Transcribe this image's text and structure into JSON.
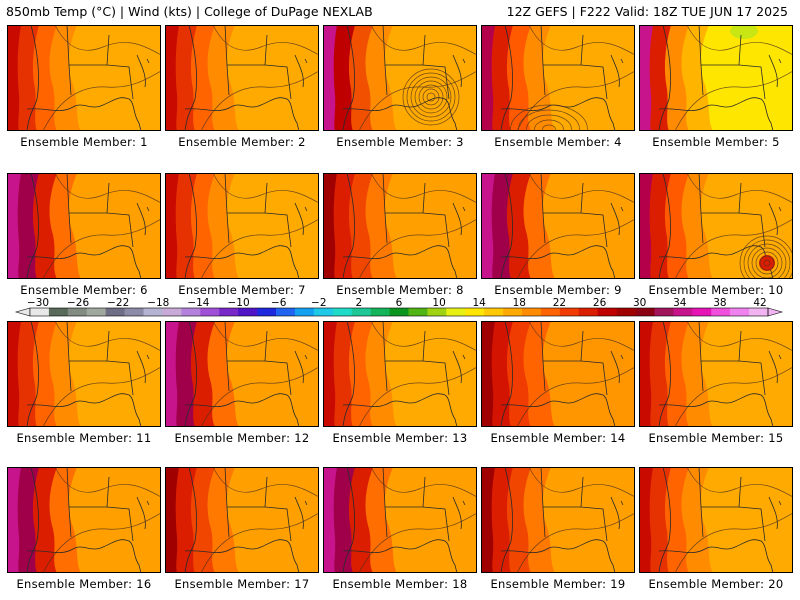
{
  "header": {
    "left": "850mb Temp (°C) | Wind (kts) | College of DuPage NEXLAB",
    "right": "12Z GEFS | F222 Valid: 18Z TUE JUN 17 2025"
  },
  "panels": [
    {
      "label": "Ensemble Member: 1",
      "variant": "warm"
    },
    {
      "label": "Ensemble Member: 2",
      "variant": "warm"
    },
    {
      "label": "Ensemble Member: 3",
      "variant": "magenta-low"
    },
    {
      "label": "Ensemble Member: 4",
      "variant": "red-low"
    },
    {
      "label": "Ensemble Member: 5",
      "variant": "hot-yellow"
    },
    {
      "label": "Ensemble Member: 6",
      "variant": "magenta"
    },
    {
      "label": "Ensemble Member: 7",
      "variant": "warm"
    },
    {
      "label": "Ensemble Member: 8",
      "variant": "warm-dark"
    },
    {
      "label": "Ensemble Member: 9",
      "variant": "magenta"
    },
    {
      "label": "Ensemble Member: 10",
      "variant": "red-low"
    },
    {
      "label": "Ensemble Member: 11",
      "variant": "warm"
    },
    {
      "label": "Ensemble Member: 12",
      "variant": "magenta"
    },
    {
      "label": "Ensemble Member: 13",
      "variant": "warm"
    },
    {
      "label": "Ensemble Member: 14",
      "variant": "red"
    },
    {
      "label": "Ensemble Member: 15",
      "variant": "warm"
    },
    {
      "label": "Ensemble Member: 16",
      "variant": "magenta"
    },
    {
      "label": "Ensemble Member: 17",
      "variant": "warm-dark"
    },
    {
      "label": "Ensemble Member: 18",
      "variant": "magenta"
    },
    {
      "label": "Ensemble Member: 19",
      "variant": "warm-dark"
    },
    {
      "label": "Ensemble Member: 20",
      "variant": "warm"
    }
  ],
  "colorbar": {
    "ticks": [
      "−30",
      "−26",
      "−22",
      "−18",
      "−14",
      "−10",
      "−6",
      "−2",
      "2",
      "6",
      "10",
      "14",
      "18",
      "22",
      "26",
      "30",
      "34",
      "38",
      "42"
    ],
    "colors": [
      "#e8e8e8",
      "#5a6a5a",
      "#828c82",
      "#a0a8a0",
      "#6e6e86",
      "#8c8ca8",
      "#b4b4d2",
      "#c8aad8",
      "#b482dc",
      "#a050d8",
      "#7828c8",
      "#5014c8",
      "#1e28dc",
      "#1e64f0",
      "#14a0f0",
      "#1ec8e6",
      "#1edcc8",
      "#1ec896",
      "#14b45a",
      "#0a961e",
      "#50b414",
      "#a0d214",
      "#e6f014",
      "#ffe600",
      "#ffc800",
      "#ffaa00",
      "#ff8c00",
      "#ff6400",
      "#f03c00",
      "#dc1e00",
      "#be0000",
      "#a00000",
      "#8c0014",
      "#a0145a",
      "#c8148c",
      "#e614b4",
      "#f050dc",
      "#f082f0",
      "#f0b4f0"
    ]
  }
}
